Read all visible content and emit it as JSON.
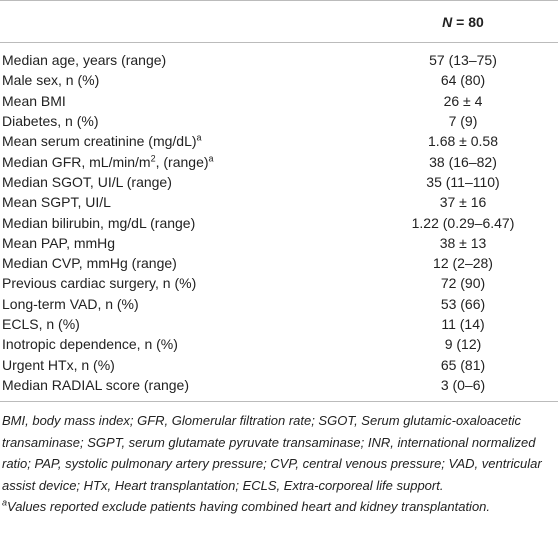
{
  "header": {
    "n_symbol": "N",
    "n_value": " = 80"
  },
  "table": {
    "rows": [
      {
        "label": [
          "Median age, years (range)"
        ],
        "value": "57 (13–75)"
      },
      {
        "label": [
          "Male sex, n (%)"
        ],
        "value": "64 (80)"
      },
      {
        "label": [
          "Mean BMI"
        ],
        "value": "26 ± 4"
      },
      {
        "label": [
          "Diabetes, n (%)"
        ],
        "value": "7 (9)"
      },
      {
        "label": [
          "Mean serum creatinine (mg/dL)",
          "a"
        ],
        "value": "1.68 ± 0.58"
      },
      {
        "label": [
          "Median GFR, mL/min/m",
          "2",
          ", (range)",
          "a"
        ],
        "value": "38 (16–82)"
      },
      {
        "label": [
          "Median SGOT, UI/L (range)"
        ],
        "value": "35 (11–110)"
      },
      {
        "label": [
          "Mean SGPT, UI/L"
        ],
        "value": "37 ± 16"
      },
      {
        "label": [
          "Median bilirubin, mg/dL (range)"
        ],
        "value": "1.22 (0.29–6.47)"
      },
      {
        "label": [
          "Mean PAP, mmHg"
        ],
        "value": "38 ± 13"
      },
      {
        "label": [
          "Median CVP, mmHg (range)"
        ],
        "value": "12 (2–28)"
      },
      {
        "label": [
          "Previous cardiac surgery, n (%)"
        ],
        "value": "72 (90)"
      },
      {
        "label": [
          "Long-term VAD, n (%)"
        ],
        "value": "53 (66)"
      },
      {
        "label": [
          "ECLS, n (%)"
        ],
        "value": "11 (14)"
      },
      {
        "label": [
          "Inotropic dependence, n (%)"
        ],
        "value": "9 (12)"
      },
      {
        "label": [
          "Urgent HTx, n (%)"
        ],
        "value": "65 (81)"
      },
      {
        "label": [
          "Median RADIAL score (range)"
        ],
        "value": "3 (0–6)"
      }
    ]
  },
  "footnotes": {
    "abbreviations": "BMI, body mass index; GFR, Glomerular filtration rate; SGOT, Serum glutamic-oxaloacetic transaminase; SGPT, serum glutamate pyruvate transaminase; INR, international normalized ratio; PAP, systolic pulmonary artery pressure; CVP, central venous pressure; VAD, ventricular assist device; HTx, Heart transplantation; ECLS, Extra-corporeal life support.",
    "note_marker": "a",
    "note": "Values reported exclude patients having combined heart and kidney transplantation."
  }
}
